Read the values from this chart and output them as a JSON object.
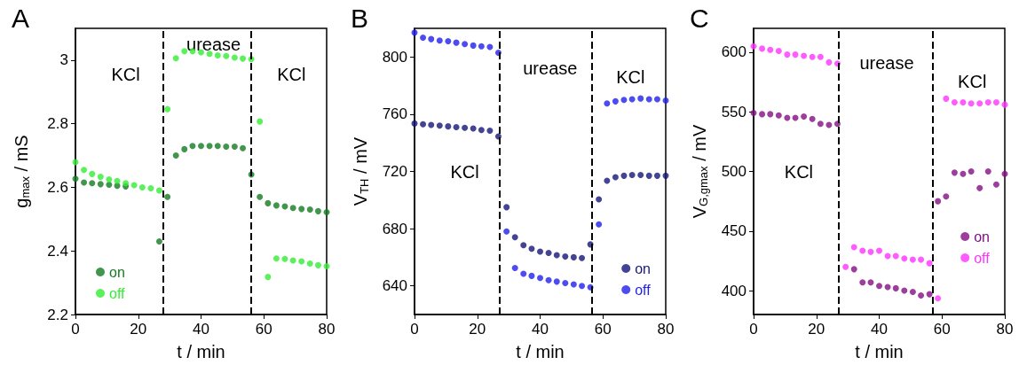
{
  "chart_data": [
    {
      "type": "scatter",
      "title": "A",
      "xlabel": "t / min",
      "ylabel": "g$_{max}$ / mS",
      "xlim": [
        0,
        80
      ],
      "xticks": [
        0,
        20,
        40,
        60,
        80
      ],
      "ylim": [
        2.2,
        3.1
      ],
      "yticks": [
        2.2,
        2.4,
        2.6,
        2.8,
        3.0
      ],
      "grid": false,
      "marker": "circle",
      "legend": "bottom left",
      "x": [
        0,
        2.7,
        5.3,
        8,
        10.7,
        13.3,
        16,
        18.7,
        21.3,
        24,
        26.7,
        29.3,
        32,
        34.7,
        37.3,
        40,
        42.7,
        45.3,
        48,
        50.7,
        53.3,
        56,
        58.7,
        61.3,
        64,
        66.7,
        69.3,
        72,
        74.7,
        77.3,
        80
      ],
      "series": [
        {
          "name": "on",
          "color": "#137a1f",
          "values": [
            2.627,
            2.615,
            2.613,
            2.61,
            2.608,
            2.605,
            2.603,
            null,
            null,
            null,
            2.43,
            2.57,
            2.7,
            2.72,
            2.73,
            2.73,
            2.73,
            2.73,
            2.728,
            2.728,
            2.723,
            2.64,
            2.57,
            2.55,
            2.543,
            2.54,
            2.535,
            2.532,
            2.53,
            2.525,
            2.522
          ]
        },
        {
          "name": "off",
          "color": "#33ee33",
          "values": [
            2.679,
            2.655,
            2.642,
            2.633,
            2.625,
            2.62,
            2.613,
            2.607,
            2.6,
            2.597,
            2.59,
            2.846,
            3.006,
            3.028,
            3.028,
            3.025,
            3.02,
            3.015,
            3.013,
            3.008,
            3.005,
            3.003,
            2.807,
            2.318,
            2.376,
            2.375,
            2.37,
            2.367,
            2.36,
            2.355,
            2.352
          ]
        }
      ],
      "ref_lines": [
        {
          "axis": "x",
          "value": 28,
          "color": "#000000",
          "line_style": "dashed"
        },
        {
          "axis": "x",
          "value": 56,
          "color": "#000000",
          "line_style": "dashed"
        }
      ],
      "annotations": [
        "KCl",
        "urease",
        "KCl"
      ]
    },
    {
      "type": "scatter",
      "title": "B",
      "xlabel": "t / min",
      "ylabel": "V$_{TH}$ / mV",
      "xlim": [
        0,
        80
      ],
      "xticks": [
        0,
        20,
        40,
        60,
        80
      ],
      "ylim": [
        620,
        820
      ],
      "yticks": [
        640,
        680,
        720,
        760,
        800
      ],
      "grid": false,
      "marker": "circle",
      "legend": "bottom right",
      "x": [
        0,
        2.7,
        5.3,
        8,
        10.7,
        13.3,
        16,
        18.7,
        21.3,
        24,
        26.7,
        29.3,
        32,
        34.7,
        37.3,
        40,
        42.7,
        45.3,
        48,
        50.7,
        53.3,
        56,
        58.7,
        61.3,
        64,
        66.7,
        69.3,
        72,
        74.7,
        77.3,
        80
      ],
      "series": [
        {
          "name": "on",
          "color": "#15157a",
          "values": [
            753.5,
            753,
            752.5,
            752,
            751.5,
            751,
            750.5,
            750,
            749,
            748.5,
            744.5,
            695,
            674,
            668.5,
            666,
            664,
            663,
            661.5,
            660.5,
            660,
            659.5,
            669,
            700.5,
            713.5,
            716,
            717,
            717.5,
            717.5,
            717,
            717,
            717
          ]
        },
        {
          "name": "off",
          "color": "#1f1fee",
          "values": [
            817,
            813.5,
            812.5,
            811.5,
            811,
            810,
            809,
            808,
            807.5,
            807,
            803,
            678,
            652.5,
            648.5,
            647,
            645.5,
            644,
            643,
            642,
            641,
            640,
            639,
            683,
            767.5,
            769,
            770,
            770.5,
            771,
            770.5,
            770.5,
            769.5
          ]
        }
      ],
      "ref_lines": [
        {
          "axis": "x",
          "value": 27.2,
          "color": "#000000",
          "line_style": "dashed"
        },
        {
          "axis": "x",
          "value": 56.4,
          "color": "#000000",
          "line_style": "dashed"
        }
      ],
      "annotations": [
        "urease",
        "KCl",
        "KCl"
      ]
    },
    {
      "type": "scatter",
      "title": "C",
      "xlabel": "t / min",
      "ylabel": "V$_{G,gmax}$ / mV",
      "xlim": [
        0,
        80
      ],
      "xticks": [
        0,
        20,
        40,
        60,
        80
      ],
      "ylim": [
        380,
        620
      ],
      "yticks": [
        400,
        450,
        500,
        550,
        600
      ],
      "grid": false,
      "marker": "circle",
      "legend": "right",
      "x": [
        0,
        2.7,
        5.3,
        8,
        10.7,
        13.3,
        16,
        18.7,
        21.3,
        24,
        26.7,
        29.3,
        32,
        34.7,
        37.3,
        40,
        42.7,
        45.3,
        48,
        50.7,
        53.3,
        56,
        58.7,
        61.3,
        64,
        66.7,
        69.3,
        72,
        74.7,
        77.3,
        80
      ],
      "series": [
        {
          "name": "on",
          "color": "#840e84",
          "values": [
            549,
            548,
            548,
            547,
            545,
            545,
            546,
            544,
            540,
            539,
            540,
            null,
            418,
            407,
            407,
            404,
            403,
            402,
            400,
            399,
            396,
            397,
            475,
            479,
            499,
            498,
            500,
            486,
            500,
            489,
            498
          ]
        },
        {
          "name": "off",
          "color": "#ff33ff",
          "values": [
            605,
            603,
            602,
            601,
            598,
            598,
            597,
            596,
            596,
            591.5,
            590.5,
            420,
            436.5,
            433.5,
            432.5,
            433.5,
            429,
            429,
            427,
            426,
            426,
            423,
            393.5,
            561,
            558,
            558,
            557,
            557,
            558,
            558,
            556
          ]
        }
      ],
      "ref_lines": [
        {
          "axis": "x",
          "value": 27,
          "color": "#000000",
          "line_style": "dashed"
        },
        {
          "axis": "x",
          "value": 57,
          "color": "#000000",
          "line_style": "dashed"
        }
      ],
      "annotations": [
        "urease",
        "KCl",
        "KCl"
      ]
    }
  ]
}
